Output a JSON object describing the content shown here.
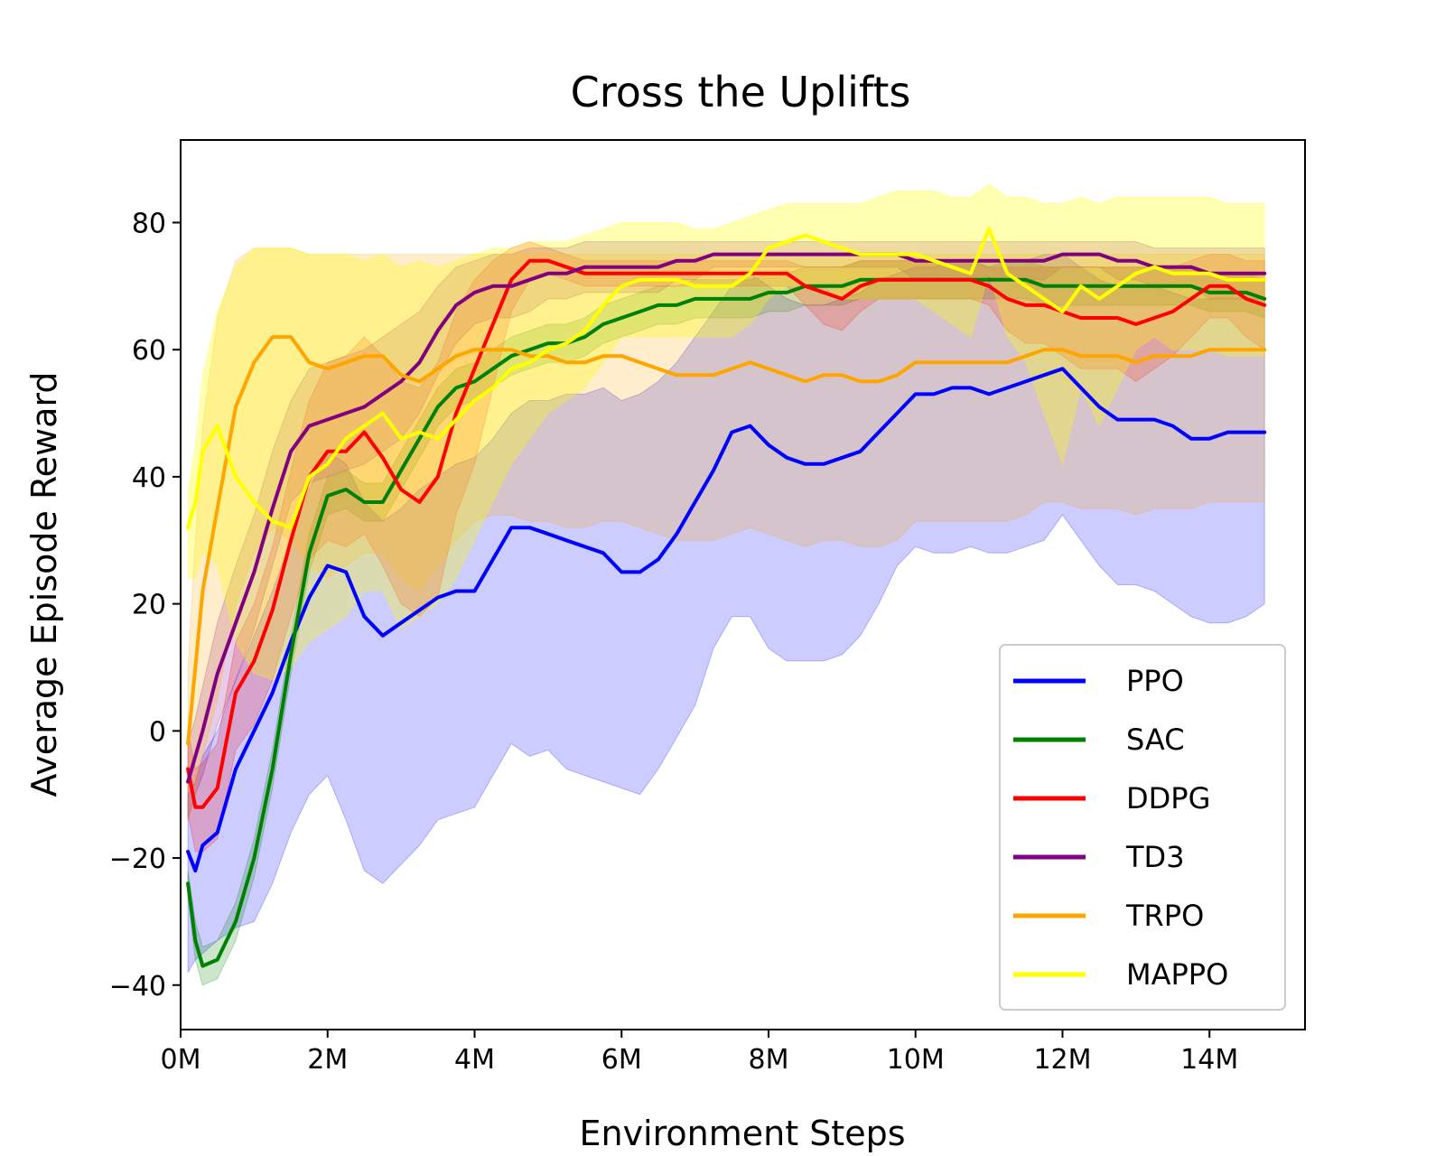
{
  "chart_data": {
    "type": "line",
    "title": "Cross the Uplifts",
    "xlabel": "Environment Steps",
    "ylabel": "Average Episode Reward",
    "xlim": [
      0,
      15.3
    ],
    "ylim": [
      -47,
      93
    ],
    "xticks": [
      0,
      2,
      4,
      6,
      8,
      10,
      12,
      14
    ],
    "xtick_labels": [
      "0M",
      "2M",
      "4M",
      "6M",
      "8M",
      "10M",
      "12M",
      "14M"
    ],
    "yticks": [
      -40,
      -20,
      0,
      20,
      40,
      60,
      80
    ],
    "ytick_labels": [
      "−40",
      "−20",
      "0",
      "20",
      "40",
      "60",
      "80"
    ],
    "grid": false,
    "legend_position": "lower-right",
    "x": [
      0.1,
      0.2,
      0.3,
      0.5,
      0.75,
      1.0,
      1.25,
      1.5,
      1.75,
      2.0,
      2.25,
      2.5,
      2.75,
      3.0,
      3.25,
      3.5,
      3.75,
      4.0,
      4.25,
      4.5,
      4.75,
      5.0,
      5.25,
      5.5,
      5.75,
      6.0,
      6.25,
      6.5,
      6.75,
      7.0,
      7.25,
      7.5,
      7.75,
      8.0,
      8.25,
      8.5,
      8.75,
      9.0,
      9.25,
      9.5,
      9.75,
      10.0,
      10.25,
      10.5,
      10.75,
      11.0,
      11.25,
      11.5,
      11.75,
      12.0,
      12.25,
      12.5,
      12.75,
      13.0,
      13.25,
      13.5,
      13.75,
      14.0,
      14.25,
      14.5,
      14.75
    ],
    "series": [
      {
        "name": "PPO",
        "color": "#0000ff",
        "fill_alpha": 0.2,
        "values": [
          -19,
          -22,
          -18,
          -16,
          -6,
          0,
          6,
          14,
          21,
          26,
          25,
          18,
          15,
          17,
          19,
          21,
          22,
          22,
          27,
          32,
          32,
          31,
          30,
          29,
          28,
          25,
          25,
          27,
          31,
          36,
          41,
          47,
          48,
          45,
          43,
          42,
          42,
          43,
          44,
          47,
          50,
          53,
          53,
          54,
          54,
          53,
          54,
          55,
          56,
          57,
          54,
          51,
          49,
          49,
          49,
          48,
          46,
          46,
          47,
          47,
          47
        ],
        "upper": [
          -10,
          -8,
          -4,
          0,
          8,
          15,
          22,
          30,
          38,
          44,
          42,
          36,
          33,
          35,
          38,
          40,
          42,
          43,
          46,
          50,
          52,
          52,
          53,
          53,
          54,
          52,
          53,
          55,
          58,
          62,
          66,
          70,
          72,
          70,
          68,
          67,
          67,
          68,
          69,
          71,
          72,
          73,
          73,
          74,
          74,
          73,
          74,
          74,
          75,
          75,
          73,
          71,
          70,
          70,
          70,
          69,
          68,
          68,
          68,
          68,
          68
        ],
        "lower": [
          -38,
          -36,
          -35,
          -33,
          -31,
          -30,
          -24,
          -16,
          -10,
          -7,
          -14,
          -22,
          -24,
          -21,
          -18,
          -14,
          -13,
          -12,
          -7,
          -2,
          -4,
          -3,
          -6,
          -7,
          -8,
          -9,
          -10,
          -6,
          -1,
          4,
          13,
          18,
          18,
          13,
          11,
          11,
          11,
          12,
          15,
          20,
          26,
          29,
          28,
          28,
          29,
          28,
          28,
          29,
          30,
          34,
          30,
          26,
          23,
          23,
          22,
          20,
          18,
          17,
          17,
          18,
          20
        ]
      },
      {
        "name": "SAC",
        "color": "#008000",
        "fill_alpha": 0.2,
        "values": [
          -24,
          -33,
          -37,
          -36,
          -30,
          -20,
          -6,
          12,
          28,
          37,
          38,
          36,
          36,
          41,
          46,
          51,
          54,
          55,
          57,
          59,
          60,
          61,
          61,
          62,
          64,
          65,
          66,
          67,
          67,
          68,
          68,
          68,
          68,
          69,
          69,
          70,
          70,
          70,
          71,
          71,
          71,
          71,
          71,
          71,
          71,
          71,
          71,
          71,
          70,
          70,
          70,
          70,
          70,
          70,
          70,
          70,
          70,
          69,
          69,
          69,
          68
        ],
        "upper": [
          -22,
          -30,
          -34,
          -33,
          -27,
          -17,
          -3,
          15,
          31,
          40,
          41,
          39,
          39,
          44,
          49,
          54,
          57,
          58,
          60,
          62,
          63,
          64,
          64,
          65,
          67,
          68,
          69,
          70,
          70,
          71,
          71,
          71,
          71,
          72,
          72,
          73,
          73,
          73,
          74,
          74,
          74,
          74,
          74,
          74,
          74,
          74,
          74,
          74,
          73,
          73,
          73,
          73,
          73,
          73,
          73,
          73,
          73,
          72,
          72,
          72,
          71
        ],
        "lower": [
          -26,
          -36,
          -40,
          -39,
          -33,
          -23,
          -9,
          9,
          25,
          34,
          35,
          33,
          33,
          38,
          43,
          48,
          51,
          52,
          54,
          56,
          57,
          58,
          58,
          59,
          61,
          62,
          63,
          64,
          64,
          65,
          65,
          65,
          65,
          66,
          66,
          67,
          67,
          67,
          68,
          68,
          68,
          68,
          68,
          68,
          68,
          68,
          68,
          68,
          67,
          67,
          67,
          67,
          67,
          67,
          67,
          67,
          67,
          66,
          66,
          66,
          65
        ]
      },
      {
        "name": "DDPG",
        "color": "#ff0000",
        "fill_alpha": 0.2,
        "values": [
          -6,
          -12,
          -12,
          -9,
          6,
          11,
          19,
          30,
          40,
          44,
          44,
          47,
          43,
          38,
          36,
          40,
          50,
          57,
          64,
          71,
          74,
          74,
          73,
          72,
          72,
          72,
          72,
          72,
          72,
          72,
          72,
          72,
          72,
          72,
          72,
          70,
          69,
          68,
          70,
          71,
          71,
          71,
          71,
          71,
          71,
          70,
          68,
          67,
          67,
          66,
          65,
          65,
          65,
          64,
          65,
          66,
          68,
          70,
          70,
          68,
          67
        ],
        "upper": [
          0,
          -6,
          -5,
          -2,
          14,
          20,
          29,
          41,
          52,
          58,
          59,
          62,
          59,
          55,
          54,
          58,
          66,
          71,
          74,
          76,
          77,
          76,
          75,
          74,
          74,
          74,
          74,
          74,
          74,
          74,
          74,
          74,
          74,
          74,
          74,
          73,
          73,
          73,
          74,
          74,
          74,
          74,
          74,
          74,
          74,
          73,
          73,
          73,
          73,
          73,
          73,
          73,
          73,
          73,
          73,
          73,
          74,
          75,
          75,
          74,
          74
        ],
        "lower": [
          -13,
          -19,
          -19,
          -17,
          -3,
          1,
          8,
          18,
          27,
          30,
          29,
          31,
          26,
          20,
          18,
          21,
          34,
          42,
          54,
          66,
          71,
          72,
          71,
          70,
          70,
          70,
          70,
          70,
          70,
          70,
          70,
          70,
          70,
          70,
          70,
          67,
          64,
          63,
          66,
          68,
          68,
          68,
          68,
          68,
          68,
          67,
          63,
          61,
          61,
          59,
          57,
          57,
          57,
          55,
          57,
          59,
          62,
          65,
          65,
          62,
          60
        ]
      },
      {
        "name": "TD3",
        "color": "#800080",
        "fill_alpha": 0.2,
        "values": [
          -8,
          -4,
          0,
          9,
          17,
          25,
          35,
          44,
          48,
          49,
          50,
          51,
          53,
          55,
          58,
          63,
          67,
          69,
          70,
          70,
          71,
          72,
          72,
          73,
          73,
          73,
          73,
          73,
          74,
          74,
          75,
          75,
          75,
          75,
          75,
          75,
          75,
          75,
          75,
          75,
          75,
          74,
          74,
          74,
          74,
          74,
          74,
          74,
          74,
          75,
          75,
          75,
          74,
          74,
          73,
          73,
          73,
          72,
          72,
          72,
          72
        ],
        "upper": [
          -2,
          2,
          7,
          17,
          26,
          34,
          44,
          52,
          57,
          58,
          59,
          60,
          62,
          64,
          66,
          70,
          73,
          74,
          75,
          75,
          76,
          76,
          76,
          77,
          77,
          77,
          77,
          77,
          77,
          77,
          77,
          77,
          77,
          77,
          77,
          77,
          77,
          77,
          77,
          77,
          77,
          77,
          77,
          77,
          77,
          77,
          77,
          77,
          77,
          77,
          77,
          77,
          77,
          77,
          76,
          76,
          76,
          76,
          76,
          76,
          76
        ],
        "lower": [
          -14,
          -10,
          -7,
          1,
          8,
          16,
          26,
          36,
          39,
          40,
          41,
          42,
          44,
          46,
          50,
          56,
          61,
          64,
          65,
          65,
          66,
          68,
          68,
          69,
          69,
          69,
          69,
          69,
          71,
          71,
          73,
          73,
          73,
          73,
          73,
          73,
          73,
          73,
          73,
          73,
          73,
          71,
          71,
          71,
          71,
          71,
          71,
          71,
          71,
          73,
          73,
          73,
          71,
          71,
          70,
          70,
          70,
          68,
          68,
          68,
          68
        ]
      },
      {
        "name": "TRPO",
        "color": "#ffa500",
        "fill_alpha": 0.2,
        "values": [
          -2,
          10,
          22,
          35,
          51,
          58,
          62,
          62,
          58,
          57,
          58,
          59,
          59,
          56,
          55,
          57,
          59,
          60,
          60,
          60,
          59,
          59,
          58,
          58,
          59,
          59,
          58,
          57,
          56,
          56,
          56,
          57,
          58,
          57,
          56,
          55,
          56,
          56,
          55,
          55,
          56,
          58,
          58,
          58,
          58,
          58,
          58,
          59,
          60,
          60,
          59,
          59,
          59,
          58,
          59,
          59,
          59,
          60,
          60,
          60,
          60
        ],
        "upper": [
          10,
          30,
          48,
          65,
          74,
          76,
          76,
          76,
          75,
          75,
          75,
          75,
          75,
          75,
          75,
          75,
          75,
          75,
          75,
          75,
          75,
          75,
          75,
          75,
          75,
          75,
          75,
          75,
          75,
          75,
          75,
          75,
          75,
          75,
          75,
          75,
          75,
          75,
          75,
          75,
          75,
          75,
          75,
          75,
          75,
          75,
          75,
          75,
          75,
          75,
          75,
          75,
          75,
          75,
          75,
          75,
          75,
          75,
          75,
          75,
          75
        ],
        "lower": [
          -14,
          -10,
          -4,
          5,
          20,
          28,
          32,
          30,
          26,
          24,
          26,
          28,
          28,
          24,
          22,
          26,
          30,
          33,
          34,
          34,
          33,
          33,
          32,
          32,
          33,
          33,
          32,
          31,
          30,
          30,
          30,
          31,
          32,
          31,
          30,
          29,
          30,
          30,
          29,
          29,
          30,
          33,
          33,
          33,
          33,
          33,
          33,
          34,
          36,
          36,
          35,
          35,
          35,
          34,
          35,
          35,
          35,
          36,
          36,
          36,
          36
        ]
      },
      {
        "name": "MAPPO",
        "color": "#ffff00",
        "fill_alpha": 0.3,
        "values": [
          32,
          36,
          44,
          48,
          40,
          36,
          33,
          32,
          40,
          42,
          46,
          48,
          50,
          46,
          47,
          46,
          49,
          52,
          54,
          57,
          58,
          60,
          61,
          63,
          67,
          70,
          71,
          71,
          71,
          70,
          70,
          70,
          72,
          76,
          77,
          78,
          77,
          76,
          75,
          75,
          75,
          75,
          74,
          73,
          72,
          79,
          72,
          70,
          68,
          66,
          70,
          68,
          70,
          72,
          73,
          72,
          72,
          72,
          71,
          71,
          71
        ],
        "upper": [
          38,
          45,
          56,
          66,
          73,
          76,
          76,
          76,
          75,
          75,
          75,
          74,
          75,
          73,
          74,
          73,
          74,
          75,
          76,
          76,
          77,
          77,
          77,
          78,
          79,
          80,
          80,
          80,
          80,
          79,
          79,
          80,
          81,
          82,
          83,
          83,
          83,
          83,
          83,
          84,
          85,
          85,
          85,
          84,
          84,
          86,
          84,
          84,
          83,
          83,
          84,
          83,
          84,
          84,
          84,
          84,
          84,
          84,
          83,
          83,
          83
        ],
        "lower": [
          24,
          24,
          28,
          26,
          14,
          9,
          8,
          10,
          14,
          16,
          18,
          22,
          22,
          16,
          18,
          20,
          24,
          30,
          36,
          42,
          46,
          50,
          52,
          54,
          58,
          62,
          62,
          62,
          62,
          62,
          62,
          62,
          64,
          68,
          70,
          70,
          70,
          68,
          68,
          68,
          68,
          68,
          66,
          64,
          62,
          72,
          62,
          58,
          50,
          42,
          54,
          48,
          54,
          60,
          62,
          60,
          60,
          60,
          59,
          59,
          59
        ]
      }
    ]
  }
}
